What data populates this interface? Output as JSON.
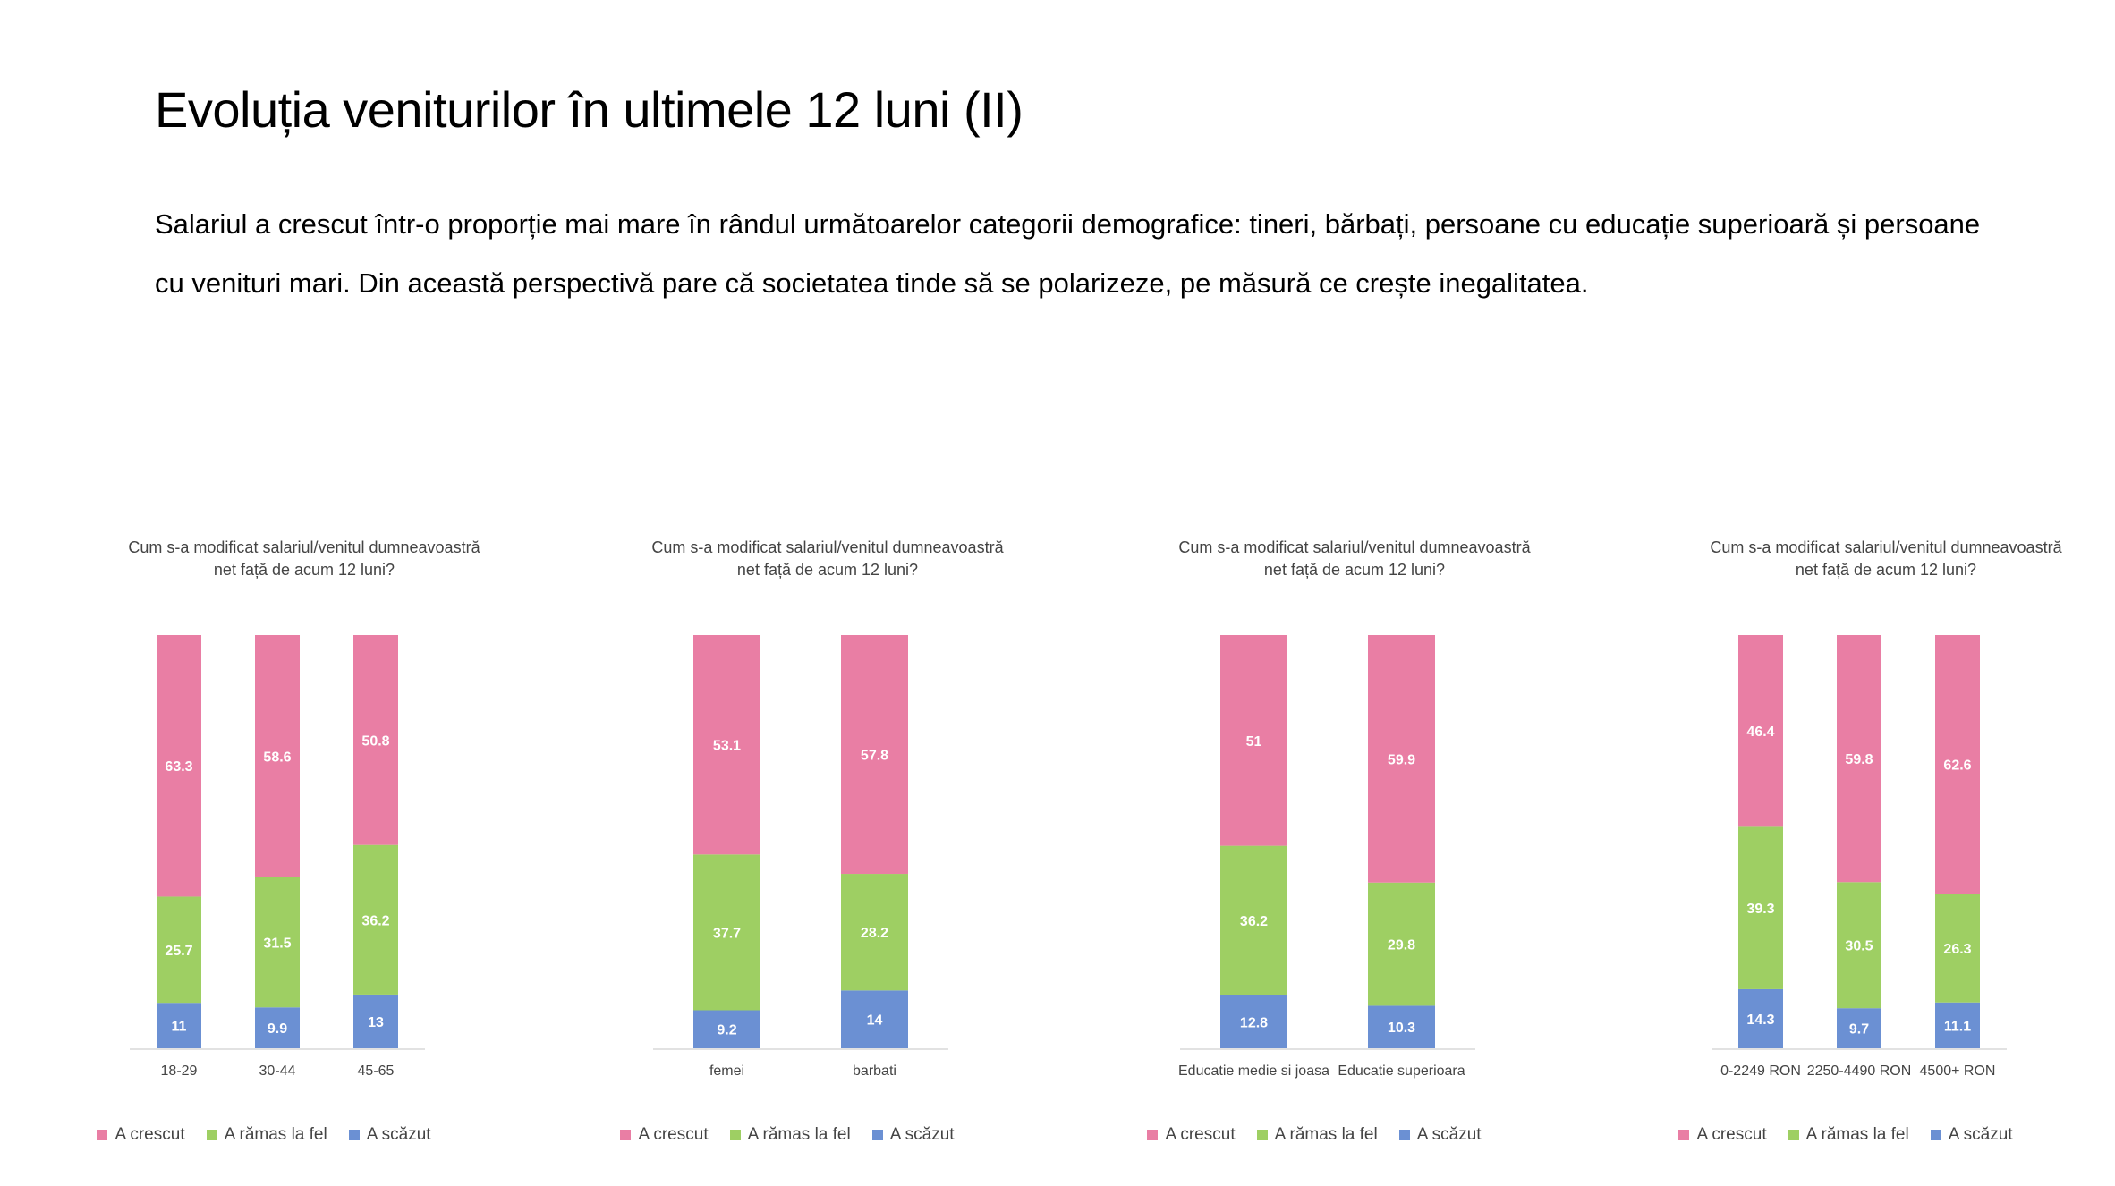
{
  "slide": {
    "title": "Evoluția veniturilor în ultimele 12 luni (II)",
    "body": "Salariul a crescut într-o proporție mai mare în rândul următoarelor categorii demografice: tineri, bărbați, persoane cu educație superioară și persoane cu venituri mari. Din această perspectivă pare că societatea tinde să se polarizeze, pe măsură ce crește inegalitatea."
  },
  "colors": {
    "crescut": "#E97EA4",
    "ramas": "#9ECF63",
    "scazut": "#6B90D3"
  },
  "legend": [
    "A crescut",
    "A rămas la fel",
    "A scăzut"
  ],
  "chart_data": [
    {
      "type": "bar",
      "stacked": true,
      "title": "Cum s-a modificat salariul/venitul dumneavoastră\nnet față de acum 12 luni?",
      "categories": [
        "18-29",
        "30-44",
        "45-65"
      ],
      "series": [
        {
          "name": "A scăzut",
          "values": [
            11,
            9.9,
            13
          ]
        },
        {
          "name": "A rămas la fel",
          "values": [
            25.7,
            31.5,
            36.2
          ]
        },
        {
          "name": "A crescut",
          "values": [
            63.3,
            58.6,
            50.8
          ]
        }
      ],
      "ylim": [
        0,
        100
      ],
      "legend_position": "bottom"
    },
    {
      "type": "bar",
      "stacked": true,
      "title": "Cum s-a modificat salariul/venitul dumneavoastră\nnet față de acum 12 luni?",
      "categories": [
        "femei",
        "barbati"
      ],
      "series": [
        {
          "name": "A scăzut",
          "values": [
            9.2,
            14
          ]
        },
        {
          "name": "A rămas la fel",
          "values": [
            37.7,
            28.2
          ]
        },
        {
          "name": "A crescut",
          "values": [
            53.1,
            57.8
          ]
        }
      ],
      "ylim": [
        0,
        100
      ],
      "legend_position": "bottom"
    },
    {
      "type": "bar",
      "stacked": true,
      "title": "Cum s-a modificat salariul/venitul dumneavoastră\nnet față de acum 12 luni?",
      "categories": [
        "Educatie medie si joasa",
        "Educatie superioara"
      ],
      "series": [
        {
          "name": "A scăzut",
          "values": [
            12.8,
            10.3
          ]
        },
        {
          "name": "A rămas la fel",
          "values": [
            36.2,
            29.8
          ]
        },
        {
          "name": "A crescut",
          "values": [
            51,
            59.9
          ]
        }
      ],
      "ylim": [
        0,
        100
      ],
      "legend_position": "bottom"
    },
    {
      "type": "bar",
      "stacked": true,
      "title": "Cum s-a modificat salariul/venitul dumneavoastră\nnet față de acum 12 luni?",
      "categories": [
        "0-2249 RON",
        "2250-4490 RON",
        "4500+ RON"
      ],
      "series": [
        {
          "name": "A scăzut",
          "values": [
            14.3,
            9.7,
            11.1
          ]
        },
        {
          "name": "A rămas la fel",
          "values": [
            39.3,
            30.5,
            26.3
          ]
        },
        {
          "name": "A crescut",
          "values": [
            46.4,
            59.8,
            62.6
          ]
        }
      ],
      "ylim": [
        0,
        100
      ],
      "legend_position": "bottom"
    }
  ]
}
